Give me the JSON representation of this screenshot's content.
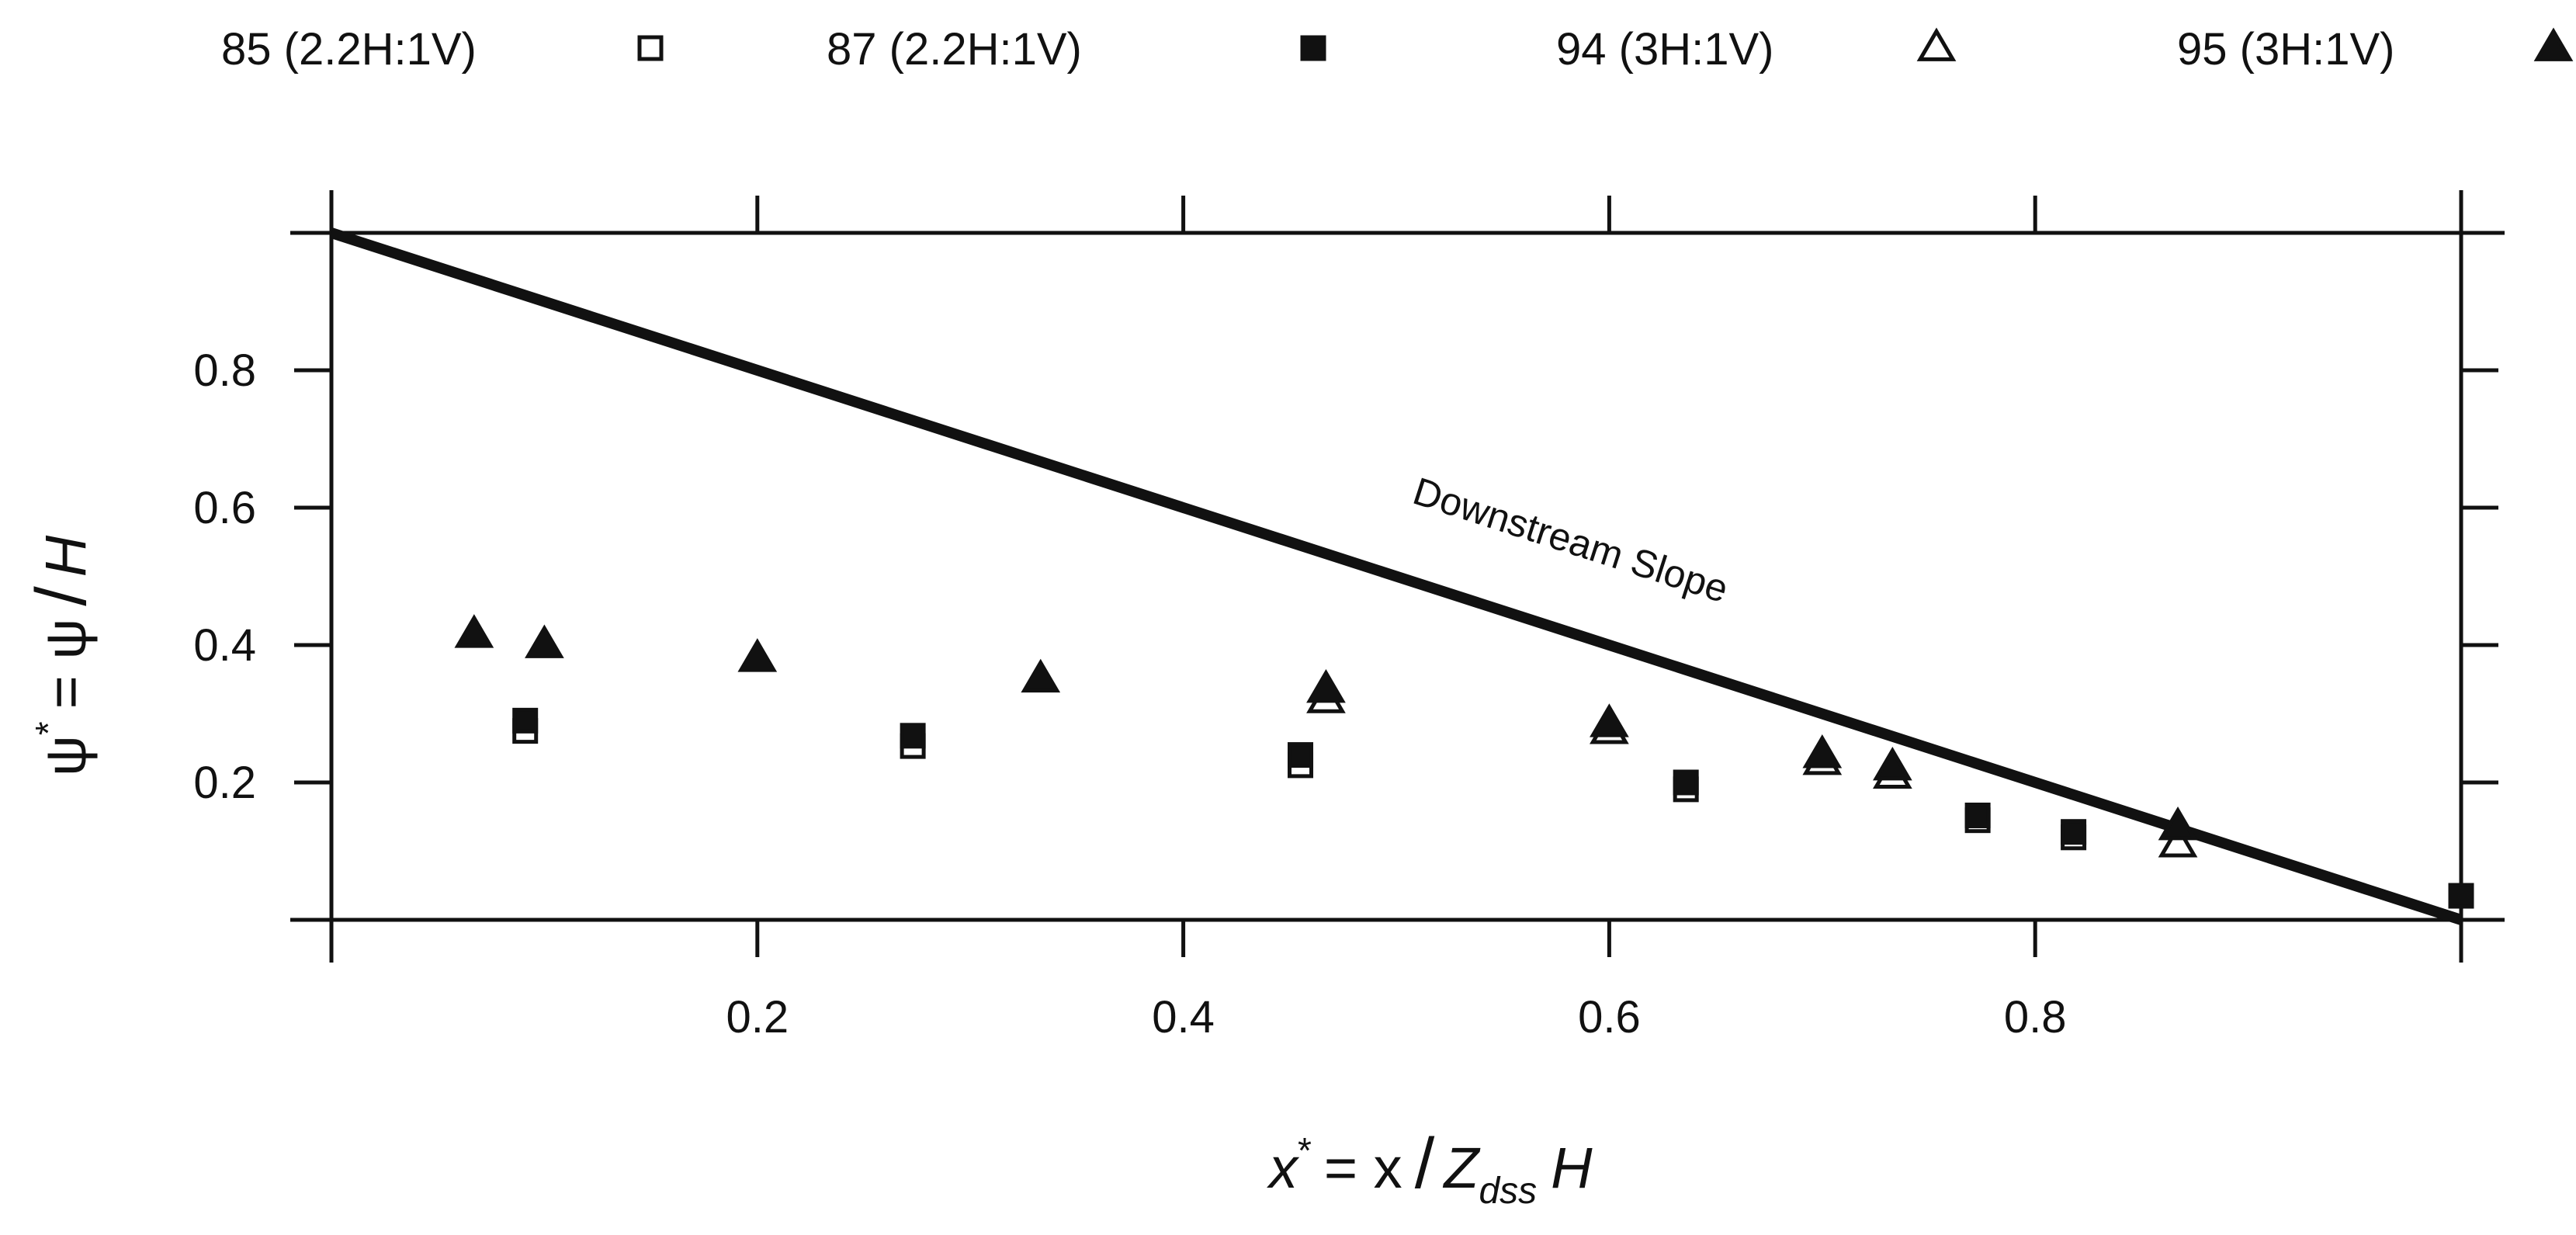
{
  "chart_data": {
    "type": "scatter",
    "title": "",
    "xlabel_main": "x",
    "xlabel_sup": "*",
    "xlabel_rest": "= x",
    "xlabel_slash": "/",
    "xlabel_z": "Z",
    "xlabel_sub": "dss",
    "xlabel_h": "H",
    "ylabel_main": "ψ",
    "ylabel_sup": "*",
    "ylabel_rest": "= ψ",
    "ylabel_slash": "/",
    "ylabel_h": "H",
    "xlim": [
      0,
      1
    ],
    "ylim": [
      0,
      1
    ],
    "x_ticks": [
      0.2,
      0.4,
      0.6,
      0.8
    ],
    "x_tick_labels": [
      "0.2",
      "0.4",
      "0.6",
      "0.8"
    ],
    "y_ticks": [
      0.2,
      0.4,
      0.6,
      0.8
    ],
    "y_tick_labels": [
      "0.2",
      "0.4",
      "0.6",
      "0.8"
    ],
    "legend_position": "top",
    "series": [
      {
        "name": "85 (2.2H:1V)",
        "marker": "square-open",
        "points": [
          [
            0.091,
            0.275
          ],
          [
            0.273,
            0.253
          ],
          [
            0.455,
            0.225
          ],
          [
            0.636,
            0.19
          ],
          [
            0.773,
            0.145
          ],
          [
            0.818,
            0.12
          ]
        ]
      },
      {
        "name": "87 (2.2H:1V)",
        "marker": "square-filled",
        "points": [
          [
            0.091,
            0.29
          ],
          [
            0.273,
            0.268
          ],
          [
            0.455,
            0.24
          ],
          [
            0.636,
            0.2
          ],
          [
            0.773,
            0.152
          ],
          [
            0.818,
            0.128
          ],
          [
            1.0,
            0.035
          ]
        ]
      },
      {
        "name": "94 (3H:1V)",
        "marker": "triangle-open",
        "points": [
          [
            0.467,
            0.32
          ],
          [
            0.6,
            0.275
          ],
          [
            0.7,
            0.23
          ],
          [
            0.733,
            0.21
          ],
          [
            0.867,
            0.11
          ]
        ]
      },
      {
        "name": "95 (3H:1V)",
        "marker": "triangle-filled",
        "points": [
          [
            0.067,
            0.415
          ],
          [
            0.1,
            0.4
          ],
          [
            0.2,
            0.38
          ],
          [
            0.333,
            0.35
          ],
          [
            0.467,
            0.335
          ],
          [
            0.6,
            0.285
          ],
          [
            0.7,
            0.24
          ],
          [
            0.733,
            0.222
          ],
          [
            0.867,
            0.135
          ]
        ]
      }
    ],
    "reference_line": {
      "label": "Downstream Slope",
      "from": [
        0,
        1
      ],
      "to": [
        1,
        0
      ]
    }
  }
}
